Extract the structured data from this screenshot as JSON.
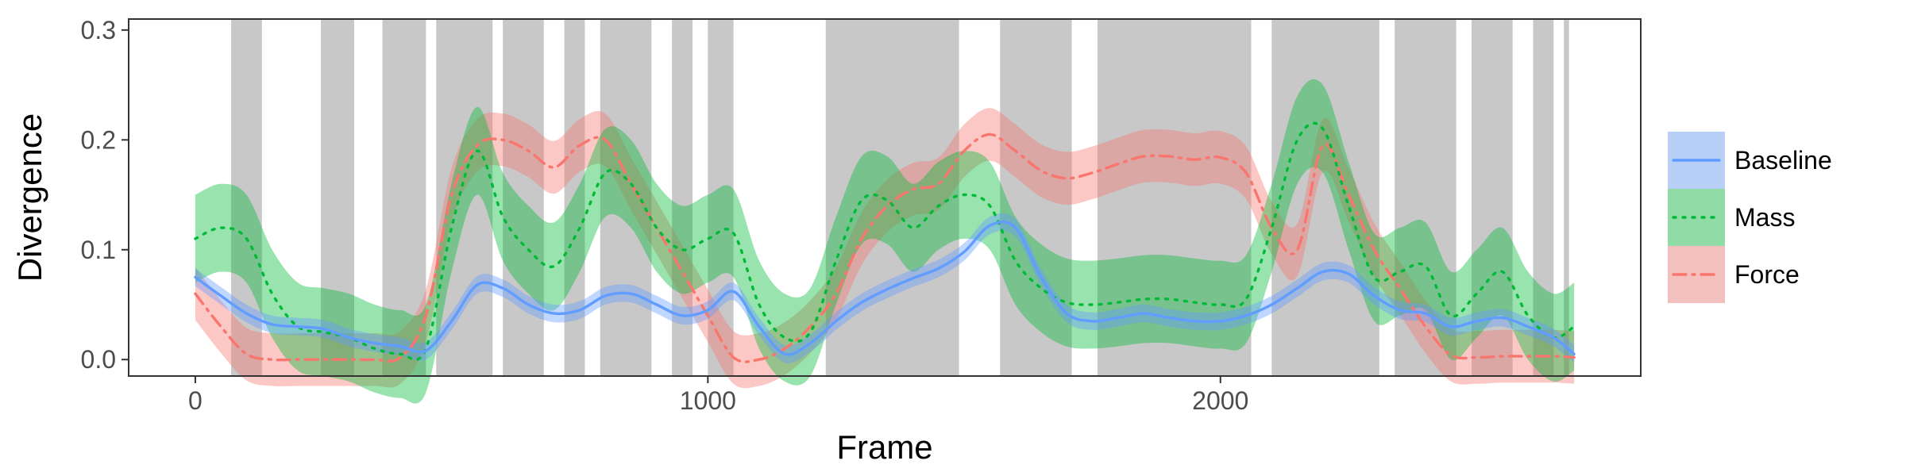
{
  "chart_data": {
    "type": "line",
    "xlabel": "Frame",
    "ylabel": "Divergence",
    "xlim": [
      -130,
      2820
    ],
    "ylim": [
      -0.015,
      0.31
    ],
    "xticks": [
      0,
      1000,
      2000
    ],
    "xtick_labels": [
      "0",
      "1000",
      "2000"
    ],
    "yticks": [
      0.0,
      0.1,
      0.2,
      0.3
    ],
    "ytick_labels": [
      "0.0",
      "0.1",
      "0.2",
      "0.3"
    ],
    "grid": false,
    "legend_position": "right",
    "shaded_regions": [
      [
        70,
        130
      ],
      [
        245,
        310
      ],
      [
        365,
        450
      ],
      [
        470,
        580
      ],
      [
        600,
        680
      ],
      [
        720,
        760
      ],
      [
        790,
        890
      ],
      [
        930,
        970
      ],
      [
        1000,
        1050
      ],
      [
        1230,
        1490
      ],
      [
        1570,
        1710
      ],
      [
        1760,
        2060
      ],
      [
        2100,
        2310
      ],
      [
        2340,
        2460
      ],
      [
        2490,
        2570
      ],
      [
        2610,
        2650
      ],
      [
        2670,
        2680
      ]
    ],
    "series": [
      {
        "name": "Baseline",
        "color": "#619CFF",
        "linestyle": "solid",
        "band": 0.008,
        "x": [
          0,
          50,
          100,
          150,
          200,
          250,
          300,
          350,
          400,
          450,
          500,
          550,
          600,
          650,
          700,
          750,
          800,
          850,
          900,
          950,
          1000,
          1050,
          1100,
          1150,
          1200,
          1250,
          1300,
          1350,
          1400,
          1450,
          1500,
          1550,
          1600,
          1650,
          1700,
          1750,
          1800,
          1850,
          1900,
          1950,
          2000,
          2050,
          2100,
          2150,
          2200,
          2250,
          2300,
          2350,
          2400,
          2450,
          2500,
          2550,
          2600,
          2650,
          2690
        ],
        "y": [
          0.075,
          0.058,
          0.042,
          0.032,
          0.03,
          0.028,
          0.02,
          0.015,
          0.012,
          0.008,
          0.035,
          0.068,
          0.065,
          0.05,
          0.042,
          0.045,
          0.058,
          0.06,
          0.05,
          0.04,
          0.045,
          0.062,
          0.03,
          0.005,
          0.015,
          0.035,
          0.052,
          0.064,
          0.074,
          0.083,
          0.098,
          0.122,
          0.12,
          0.075,
          0.042,
          0.035,
          0.038,
          0.042,
          0.038,
          0.035,
          0.035,
          0.04,
          0.05,
          0.065,
          0.08,
          0.078,
          0.058,
          0.045,
          0.042,
          0.03,
          0.035,
          0.038,
          0.03,
          0.02,
          0.005
        ]
      },
      {
        "name": "Mass",
        "color": "#00BA38",
        "linestyle": "dotted",
        "band": 0.04,
        "x": [
          0,
          50,
          100,
          150,
          200,
          250,
          300,
          350,
          400,
          450,
          500,
          550,
          600,
          650,
          700,
          750,
          800,
          850,
          900,
          950,
          1000,
          1050,
          1100,
          1150,
          1200,
          1250,
          1300,
          1350,
          1400,
          1450,
          1500,
          1550,
          1600,
          1650,
          1700,
          1750,
          1800,
          1850,
          1900,
          1950,
          2000,
          2050,
          2100,
          2150,
          2200,
          2250,
          2300,
          2350,
          2400,
          2450,
          2500,
          2550,
          2600,
          2650,
          2690
        ],
        "y": [
          0.11,
          0.12,
          0.11,
          0.06,
          0.03,
          0.025,
          0.02,
          0.01,
          0.005,
          0.01,
          0.12,
          0.19,
          0.13,
          0.1,
          0.085,
          0.12,
          0.17,
          0.16,
          0.12,
          0.1,
          0.11,
          0.115,
          0.05,
          0.02,
          0.025,
          0.09,
          0.145,
          0.145,
          0.12,
          0.14,
          0.15,
          0.14,
          0.09,
          0.065,
          0.052,
          0.05,
          0.052,
          0.055,
          0.055,
          0.052,
          0.05,
          0.055,
          0.12,
          0.2,
          0.21,
          0.14,
          0.075,
          0.08,
          0.085,
          0.04,
          0.06,
          0.08,
          0.04,
          0.02,
          0.03
        ]
      },
      {
        "name": "Force",
        "color": "#F8766D",
        "linestyle": "dashdot",
        "band": 0.024,
        "x": [
          0,
          50,
          100,
          150,
          200,
          250,
          300,
          350,
          400,
          450,
          500,
          550,
          600,
          650,
          700,
          750,
          800,
          850,
          900,
          950,
          1000,
          1050,
          1100,
          1150,
          1200,
          1250,
          1300,
          1350,
          1400,
          1450,
          1500,
          1550,
          1600,
          1650,
          1700,
          1750,
          1800,
          1850,
          1900,
          1950,
          2000,
          2050,
          2100,
          2150,
          2200,
          2250,
          2300,
          2350,
          2400,
          2450,
          2500,
          2550,
          2600,
          2650,
          2690
        ],
        "y": [
          0.06,
          0.03,
          0.005,
          0.0,
          0.0,
          0.0,
          0.0,
          0.0,
          0.002,
          0.04,
          0.15,
          0.195,
          0.2,
          0.19,
          0.175,
          0.195,
          0.2,
          0.16,
          0.12,
          0.08,
          0.04,
          0.002,
          0.0,
          0.01,
          0.03,
          0.06,
          0.11,
          0.14,
          0.155,
          0.16,
          0.19,
          0.205,
          0.19,
          0.172,
          0.165,
          0.17,
          0.178,
          0.185,
          0.185,
          0.182,
          0.184,
          0.17,
          0.12,
          0.1,
          0.195,
          0.15,
          0.1,
          0.065,
          0.03,
          0.004,
          0.002,
          0.003,
          0.003,
          0.003,
          0.002
        ]
      }
    ]
  }
}
